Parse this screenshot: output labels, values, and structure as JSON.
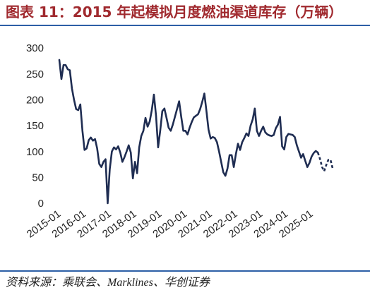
{
  "chart_data": {
    "type": "line",
    "title": "图表 11：2015 年起模拟月度燃油渠道库存（万辆）",
    "ylim": [
      0,
      300
    ],
    "y_ticks": [
      0,
      50,
      100,
      150,
      200,
      250,
      300
    ],
    "x_ticks": [
      "2015-01",
      "2016-01",
      "2017-01",
      "2018-01",
      "2019-01",
      "2020-01",
      "2021-01",
      "2022-01",
      "2023-01",
      "2024-01",
      "2025-01"
    ],
    "grid": false,
    "legend": "none",
    "series": [
      {
        "line_style": "solid",
        "color": "#1f2d52",
        "x": [
          "2015-01",
          "2015-02",
          "2015-03",
          "2015-04",
          "2015-05",
          "2015-06",
          "2015-07",
          "2015-08",
          "2015-09",
          "2015-10",
          "2015-11",
          "2015-12",
          "2016-01",
          "2016-02",
          "2016-03",
          "2016-04",
          "2016-05",
          "2016-06",
          "2016-07",
          "2016-08",
          "2016-09",
          "2016-10",
          "2016-11",
          "2016-12",
          "2017-01",
          "2017-02",
          "2017-03",
          "2017-04",
          "2017-05",
          "2017-06",
          "2017-07",
          "2017-08",
          "2017-09",
          "2017-10",
          "2017-11",
          "2017-12",
          "2018-01",
          "2018-02",
          "2018-03",
          "2018-04",
          "2018-05",
          "2018-06",
          "2018-07",
          "2018-08",
          "2018-09",
          "2018-10",
          "2018-11",
          "2018-12",
          "2019-01",
          "2019-02",
          "2019-03",
          "2019-04",
          "2019-05",
          "2019-06",
          "2019-07",
          "2019-08",
          "2019-09",
          "2019-10",
          "2019-11",
          "2019-12",
          "2020-01",
          "2020-02",
          "2020-03",
          "2020-04",
          "2020-05",
          "2020-06",
          "2020-07",
          "2020-08",
          "2020-09",
          "2020-10",
          "2020-11",
          "2020-12",
          "2021-01",
          "2021-02",
          "2021-03",
          "2021-04",
          "2021-05",
          "2021-06",
          "2021-07",
          "2021-08",
          "2021-09",
          "2021-10",
          "2021-11",
          "2021-12",
          "2022-01",
          "2022-02",
          "2022-03",
          "2022-04",
          "2022-05",
          "2022-06",
          "2022-07",
          "2022-08",
          "2022-09",
          "2022-10",
          "2022-11",
          "2022-12",
          "2023-01",
          "2023-02",
          "2023-03",
          "2023-04",
          "2023-05",
          "2023-06",
          "2023-07",
          "2023-08",
          "2023-09",
          "2023-10",
          "2023-11",
          "2023-12",
          "2024-01",
          "2024-02",
          "2024-03",
          "2024-04",
          "2024-05",
          "2024-06",
          "2024-07",
          "2024-08",
          "2024-09",
          "2024-10",
          "2024-11",
          "2024-12",
          "2025-01",
          "2025-02",
          "2025-03",
          "2025-04"
        ],
        "y": [
          277,
          240,
          267,
          267,
          259,
          257,
          222,
          200,
          182,
          180,
          191,
          140,
          103,
          106,
          122,
          127,
          121,
          124,
          106,
          76,
          70,
          80,
          85,
          0,
          66,
          100,
          108,
          104,
          110,
          98,
          80,
          89,
          100,
          112,
          98,
          48,
          80,
          58,
          108,
          130,
          140,
          165,
          148,
          158,
          180,
          210,
          170,
          108,
          140,
          178,
          183,
          165,
          146,
          140,
          152,
          167,
          182,
          197,
          167,
          140,
          140,
          133,
          146,
          157,
          166,
          169,
          172,
          182,
          196,
          212,
          178,
          142,
          125,
          128,
          126,
          118,
          100,
          80,
          60,
          53,
          67,
          93,
          93,
          70,
          95,
          115,
          103,
          118,
          126,
          135,
          130,
          150,
          162,
          183,
          140,
          130,
          140,
          148,
          137,
          133,
          131,
          130,
          132,
          145,
          152,
          167,
          110,
          104,
          128,
          134,
          133,
          132,
          128,
          112,
          100,
          88,
          95,
          82,
          70,
          78,
          90,
          97,
          101,
          98
        ]
      },
      {
        "line_style": "dashed",
        "color": "#1f2d52",
        "x": [
          "2025-04",
          "2025-05",
          "2025-06",
          "2025-07",
          "2025-08",
          "2025-09",
          "2025-10",
          "2025-11"
        ],
        "y": [
          98,
          86,
          70,
          62,
          74,
          84,
          84,
          68
        ]
      }
    ]
  },
  "footer": {
    "source": "资料来源：乘联会、Marklines、华创证券"
  },
  "colors": {
    "title": "#a0292e",
    "rule": "#2d5fa6",
    "axis_text": "#262626"
  }
}
